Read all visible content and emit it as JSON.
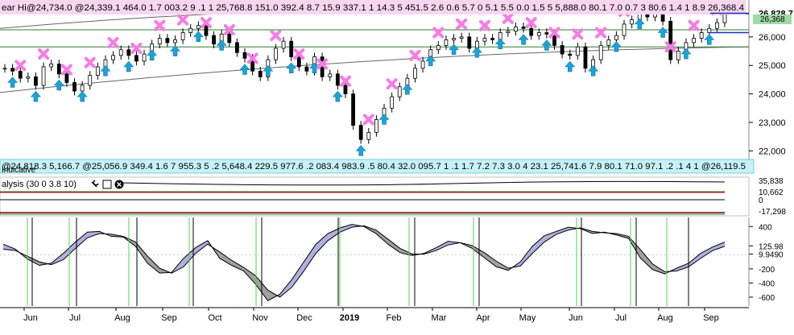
{
  "chart_data": {
    "type": "line",
    "title": "",
    "xlabel": "",
    "ylabel": "",
    "x_ticks": [
      "Jun",
      "Jul",
      "Aug",
      "Sep",
      "Oct",
      "Nov",
      "Dec",
      "2019",
      "Feb",
      "Mar",
      "Apr",
      "May",
      "Jun",
      "Jul",
      "Aug",
      "Sep"
    ],
    "price_axis": {
      "ticks": [
        "22,000",
        "23,000",
        "24,000",
        "25,000",
        "26,000"
      ],
      "tick_values": [
        22000,
        23000,
        24000,
        25000,
        26000
      ],
      "ylim": [
        21700,
        26900
      ],
      "highlight_labels": [
        {
          "text": "26,828.7",
          "value": 26828.7
        },
        {
          "text": "26,368.4",
          "value": 26368.4
        }
      ]
    },
    "series_ohlc_close": [
      24900,
      24800,
      24550,
      24600,
      24300,
      24950,
      25050,
      24700,
      24400,
      24100,
      24300,
      24650,
      24950,
      25200,
      25350,
      25550,
      25350,
      25150,
      25400,
      25750,
      25950,
      25800,
      25900,
      26150,
      26300,
      26400,
      26050,
      25750,
      26100,
      25800,
      25450,
      25250,
      24800,
      24600,
      25200,
      25600,
      25850,
      25300,
      24950,
      24800,
      25300,
      24600,
      24700,
      24300,
      24000,
      22900,
      22400,
      22650,
      23100,
      23500,
      23900,
      24250,
      24550,
      24900,
      25150,
      25550,
      25700,
      25900,
      25950,
      26000,
      25600,
      25850,
      25950,
      25900,
      26150,
      26200,
      26350,
      26300,
      26050,
      26150,
      26100,
      25700,
      25400,
      25350,
      25650,
      24900,
      25200,
      25700,
      25900,
      26050,
      26450,
      26600,
      26850,
      26700,
      26900,
      26550,
      25200,
      25500,
      25800,
      25950,
      26150,
      26300,
      26500,
      26830
    ],
    "channel_lines": [
      {
        "name": "",
        "values": [
          26300,
          26800
        ]
      },
      {
        "name": "",
        "values": [
          24050,
          25650
        ]
      }
    ],
    "ribbon_top_text": "ear Hi@24,734.0 @24,339.1 464.0 1.7 003.2 9 .1 1 25,768.8 151.0 392.4 8.7 15.9 337.1 1 14.3 5 451.5 2.6 0.6 5.7 0 5.1 5.5 0.0 1.5 5 5,888.0 80.1 7.0 0.7 3 80.6 1.4 1 8.9 26,368.4",
    "ribbon_bottom_text": "@24,818.3 5,166.7 @25,056.9 349.4 1.6 7 955.3 5 .2 5,648.4 229.5 977.6 .2 083.4 983.9 .5 80.4 32.0 095.7 1 .1 1.7 7.2 7.3 3.0 4 23.1 25,741.6 7.9 80.1 71.0 97.1 .2 .1 4 1 @26,119.5",
    "ribbon_bottom_prefix": "Indicative",
    "mid_panel": {
      "title": "alysis (30 0 3.8 10)",
      "labels": [
        "35,838",
        "10,662",
        "0",
        "-17,298"
      ],
      "label_colors": [
        "#2e8b57",
        "#2e8b57",
        "#000000",
        "#cc0000"
      ]
    },
    "oscillator": {
      "ticks": [
        "400",
        "125.98",
        "9.9490",
        "-200",
        "-400",
        "-600"
      ],
      "tick_values": [
        400,
        125.98,
        9.949,
        -200,
        -400,
        -600
      ],
      "ylim": [
        -680,
        460
      ],
      "fast": [
        150,
        80,
        -60,
        -150,
        -120,
        20,
        180,
        320,
        330,
        260,
        250,
        120,
        -120,
        -260,
        -250,
        -50,
        100,
        200,
        -50,
        -150,
        -230,
        -420,
        -650,
        -560,
        -350,
        -100,
        150,
        300,
        380,
        430,
        400,
        300,
        150,
        30,
        -10,
        20,
        100,
        190,
        170,
        90,
        -40,
        -170,
        -220,
        -100,
        120,
        270,
        330,
        390,
        370,
        300,
        320,
        280,
        230,
        -50,
        -210,
        -270,
        -190,
        -120,
        20,
        110,
        180
      ],
      "slow": [
        80,
        60,
        -20,
        -100,
        -140,
        -70,
        90,
        240,
        300,
        290,
        260,
        180,
        -20,
        -190,
        -260,
        -170,
        20,
        150,
        40,
        -80,
        -180,
        -300,
        -500,
        -600,
        -460,
        -230,
        20,
        200,
        320,
        390,
        410,
        350,
        220,
        90,
        10,
        10,
        60,
        140,
        170,
        130,
        30,
        -90,
        -190,
        -160,
        20,
        180,
        290,
        350,
        380,
        330,
        310,
        300,
        260,
        70,
        -130,
        -240,
        -230,
        -170,
        -50,
        60,
        120
      ]
    },
    "series": [
      {
        "name": "",
        "color": "#000000"
      },
      {
        "name": "",
        "color": "#7070c0"
      }
    ]
  },
  "colors": {
    "up_arrow": "#1aa3d9",
    "down_marker": "#f77be5",
    "channel_top": "#2e7d32",
    "channel_bottom": "#555555",
    "fill_up": "#b0b0e0",
    "fill_down": "#a0a0a0",
    "ribbon_top_bg": "#f7d6f0",
    "ribbon_bottom_bg": "#c7f2f7",
    "vline_green": "#4cd64c",
    "vline_black": "#000000",
    "price_badge": "#1f2cc9"
  },
  "icons": [
    "wrench-icon",
    "window-icon",
    "close-icon"
  ]
}
